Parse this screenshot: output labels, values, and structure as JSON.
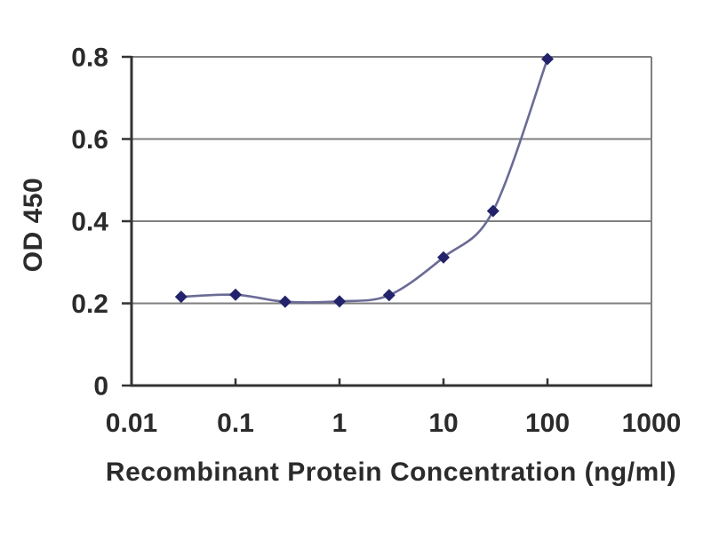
{
  "chart_data": {
    "type": "line",
    "title": "",
    "xlabel": "Recombinant Protein Concentration (ng/ml)",
    "ylabel": "OD 450",
    "x_scale": "log",
    "xlim": [
      0.01,
      1000
    ],
    "ylim": [
      0,
      0.8
    ],
    "x_ticks": [
      0.01,
      0.1,
      1,
      10,
      100,
      1000
    ],
    "x_tick_labels": [
      "0.01",
      "0.1",
      "1",
      "10",
      "100",
      "1000"
    ],
    "y_ticks": [
      0,
      0.2,
      0.4,
      0.6,
      0.8
    ],
    "y_tick_labels": [
      "0",
      "0.2",
      "0.4",
      "0.6",
      "0.8"
    ],
    "grid": "horizontal",
    "legend": "none",
    "series": [
      {
        "name": "OD 450",
        "marker": "diamond",
        "smooth": true,
        "x": [
          0.03,
          0.1,
          0.3,
          1,
          3,
          10,
          30,
          100
        ],
        "y": [
          0.216,
          0.221,
          0.204,
          0.205,
          0.22,
          0.312,
          0.425,
          0.795
        ]
      }
    ],
    "colors": {
      "line": "#6b6b96",
      "marker": "#23236b",
      "grid": "#7f7f7f",
      "frame": "#7f7f7f",
      "axis": "#333333",
      "text": "#2b2b2b",
      "background": "#ffffff"
    }
  }
}
